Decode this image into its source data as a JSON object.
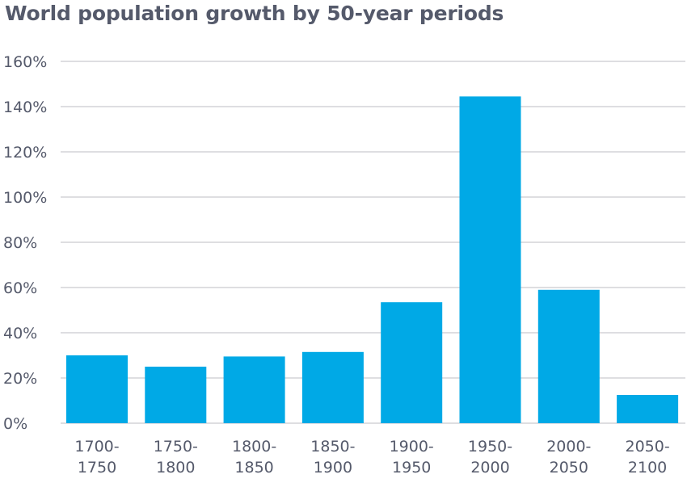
{
  "chart_data": {
    "type": "bar",
    "title": "World population growth by 50-year periods",
    "xlabel": "",
    "ylabel": "",
    "categories": [
      [
        "1700-",
        "1750"
      ],
      [
        "1750-",
        "1800"
      ],
      [
        "1800-",
        "1850"
      ],
      [
        "1850-",
        "1900"
      ],
      [
        "1900-",
        "1950"
      ],
      [
        "1950-",
        "2000"
      ],
      [
        "2000-",
        "2050"
      ],
      [
        "2050-",
        "2100"
      ]
    ],
    "values": [
      30,
      25,
      29.5,
      31.5,
      53.5,
      144.5,
      59,
      12.5
    ],
    "ylim": [
      0,
      160
    ],
    "yticks": [
      0,
      20,
      40,
      60,
      80,
      100,
      120,
      140,
      160
    ],
    "ytick_labels": [
      "0%",
      "20%",
      "40%",
      "60%",
      "80%",
      "100%",
      "120%",
      "140%",
      "160%"
    ],
    "grid": true,
    "legend": "none",
    "bar_color": "#00a9e6",
    "grid_color": "#c9c9cf",
    "text_color": "#555a6b"
  }
}
